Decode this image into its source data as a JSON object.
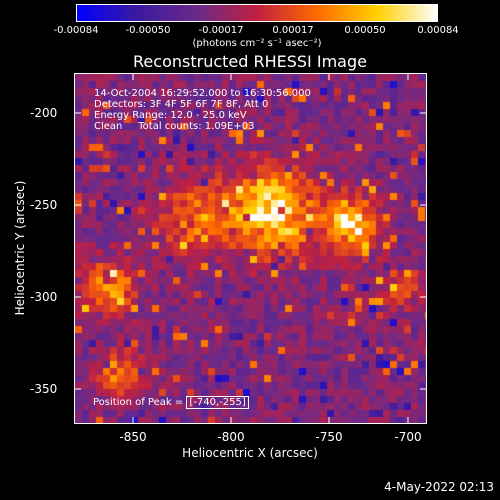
{
  "colorbar": {
    "ticks": [
      "-0.00084",
      "-0.00050",
      "-0.00017",
      "0.00017",
      "0.00050",
      "0.00084"
    ],
    "units": "(photons cm⁻² s⁻¹ asec⁻²)",
    "colors": [
      "#0000ff",
      "#3a1aa0",
      "#6a2a8a",
      "#c02040",
      "#ff6a00",
      "#ffd000",
      "#ffffff"
    ]
  },
  "title": "Reconstructed RHESSI Image",
  "info": {
    "line1": "14-Oct-2004 16:29:52.000 to 16:30:56.000",
    "line2": "Detectors: 3F 4F 5F 6F 7F 8F, Att 0",
    "line3": "Energy Range: 12.0 - 25.0 keV",
    "line4": "Clean     Total counts: 1.09E+03"
  },
  "peak": {
    "label": "Position of Peak = ",
    "value": "[-740,-255]"
  },
  "axes": {
    "xlabel": "Heliocentric X (arcsec)",
    "ylabel": "Heliocentric Y (arcsec)",
    "xticks": [
      "-850",
      "-800",
      "-750",
      "-700"
    ],
    "yticks": [
      "-200",
      "-250",
      "-300",
      "-350"
    ],
    "xlim": [
      -875,
      -695
    ],
    "ylim": [
      -371,
      -180
    ]
  },
  "footer": {
    "date": "4-May-2022 02:13"
  }
}
